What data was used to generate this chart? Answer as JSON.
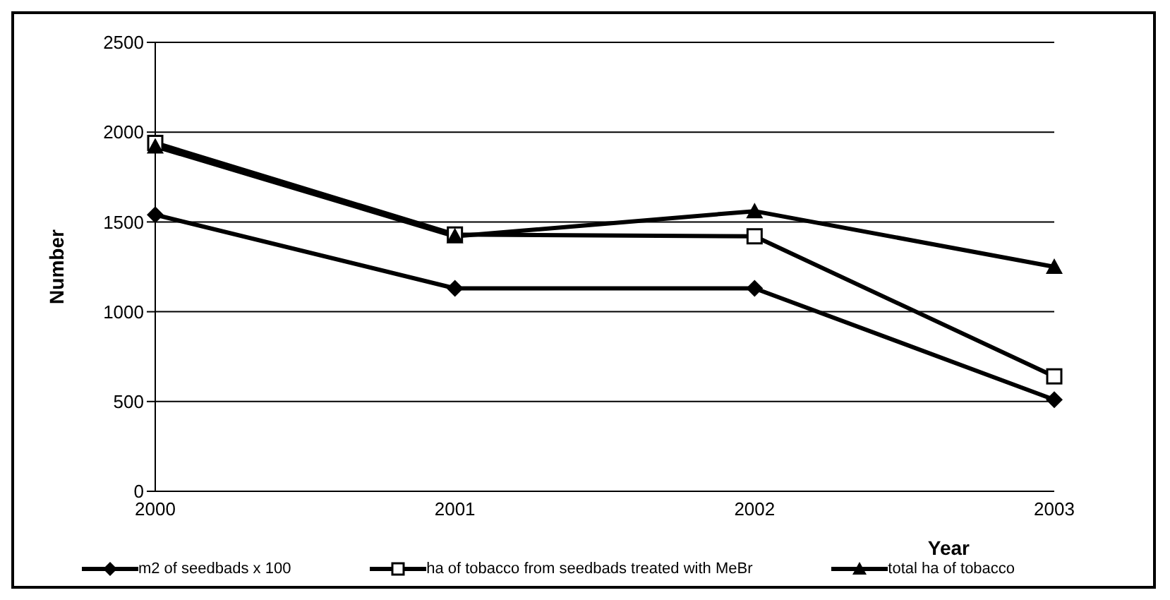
{
  "chart_data": {
    "type": "line",
    "xlabel": "Year",
    "ylabel": "Number",
    "categories": [
      "2000",
      "2001",
      "2002",
      "2003"
    ],
    "series": [
      {
        "name": "m2 of seedbads x 100",
        "color": "#000000",
        "marker": "diamond",
        "values": [
          1540,
          1130,
          1130,
          510
        ]
      },
      {
        "name": "ha of tobacco from seedbads treated with MeBr",
        "color": "#000000",
        "marker": "square",
        "values": [
          1940,
          1430,
          1420,
          640
        ]
      },
      {
        "name": "total ha of tobacco",
        "color": "#000000",
        "marker": "triangle",
        "values": [
          1920,
          1420,
          1560,
          1250
        ]
      }
    ],
    "ylim": [
      0,
      2500
    ],
    "yticks": [
      0,
      500,
      1000,
      1500,
      2000,
      2500
    ],
    "grid": "y",
    "legend": "bottom",
    "line_style": "solid"
  }
}
